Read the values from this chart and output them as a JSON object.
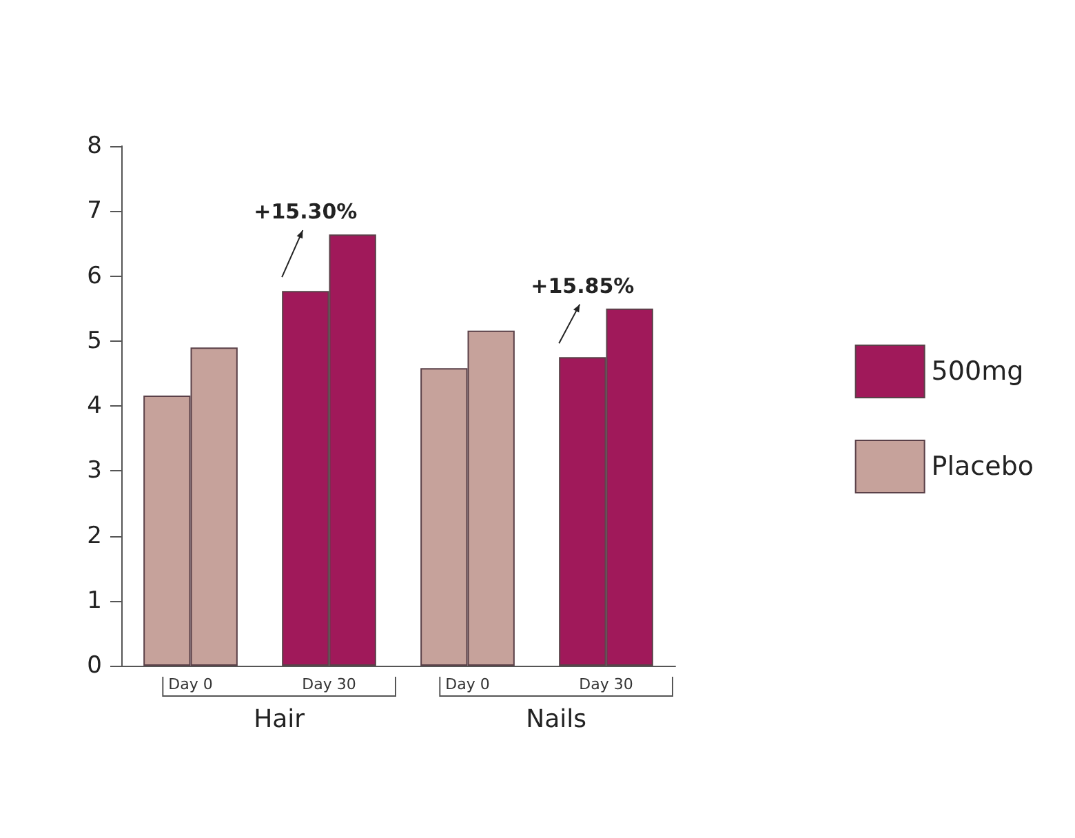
{
  "chart_data": {
    "type": "bar",
    "categories": [
      "Day 0",
      "Day 30",
      "Day 0",
      "Day 30"
    ],
    "series": [
      {
        "name": "500mg",
        "color": "#a0195a",
        "values": [
          null,
          5.77,
          null,
          4.75
        ]
      },
      {
        "color": "#a0195a",
        "values": [
          null,
          6.64,
          null,
          5.5
        ]
      },
      {
        "name": "Placebo",
        "color": "#c6a29b",
        "values": [
          4.16,
          null,
          4.58,
          null
        ]
      },
      {
        "color": "#c6a29b",
        "values": [
          4.9,
          null,
          5.16,
          null
        ]
      }
    ],
    "ylim": [
      0,
      8
    ],
    "yticks": [
      0,
      1,
      2,
      3,
      4,
      5,
      6,
      7,
      8
    ],
    "grid": false,
    "legend": "right",
    "annotations": [
      "+15.30%",
      "+15.85%",
      "Hair",
      "Nails"
    ]
  }
}
